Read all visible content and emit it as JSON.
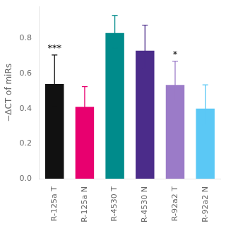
{
  "chart_data": {
    "type": "bar",
    "categories": [
      "R-125a T",
      "R-125a N",
      "R-4530 T",
      "R-4530 N",
      "R-92a2 T",
      "R-92a2 N"
    ],
    "values": [
      0.54,
      0.41,
      0.83,
      0.73,
      0.535,
      0.4
    ],
    "errors_upper": [
      0.165,
      0.115,
      0.1,
      0.145,
      0.135,
      0.135
    ],
    "errors_lower": [
      0.13,
      0.085,
      0.085,
      0.1,
      0.09,
      0.095
    ],
    "colors": [
      "#111111",
      "#E8006F",
      "#008B8B",
      "#4B2C8A",
      "#9B7BC8",
      "#5BC8F5"
    ],
    "ylabel": "−ΔCT of miRs",
    "ylim": [
      0.0,
      0.98
    ],
    "yticks": [
      {
        "value": 0.0,
        "label": "0.0"
      },
      0.2,
      0.4,
      0.6,
      0.8
    ],
    "significance": [
      "***",
      null,
      null,
      null,
      "*",
      null
    ],
    "grid": false
  }
}
